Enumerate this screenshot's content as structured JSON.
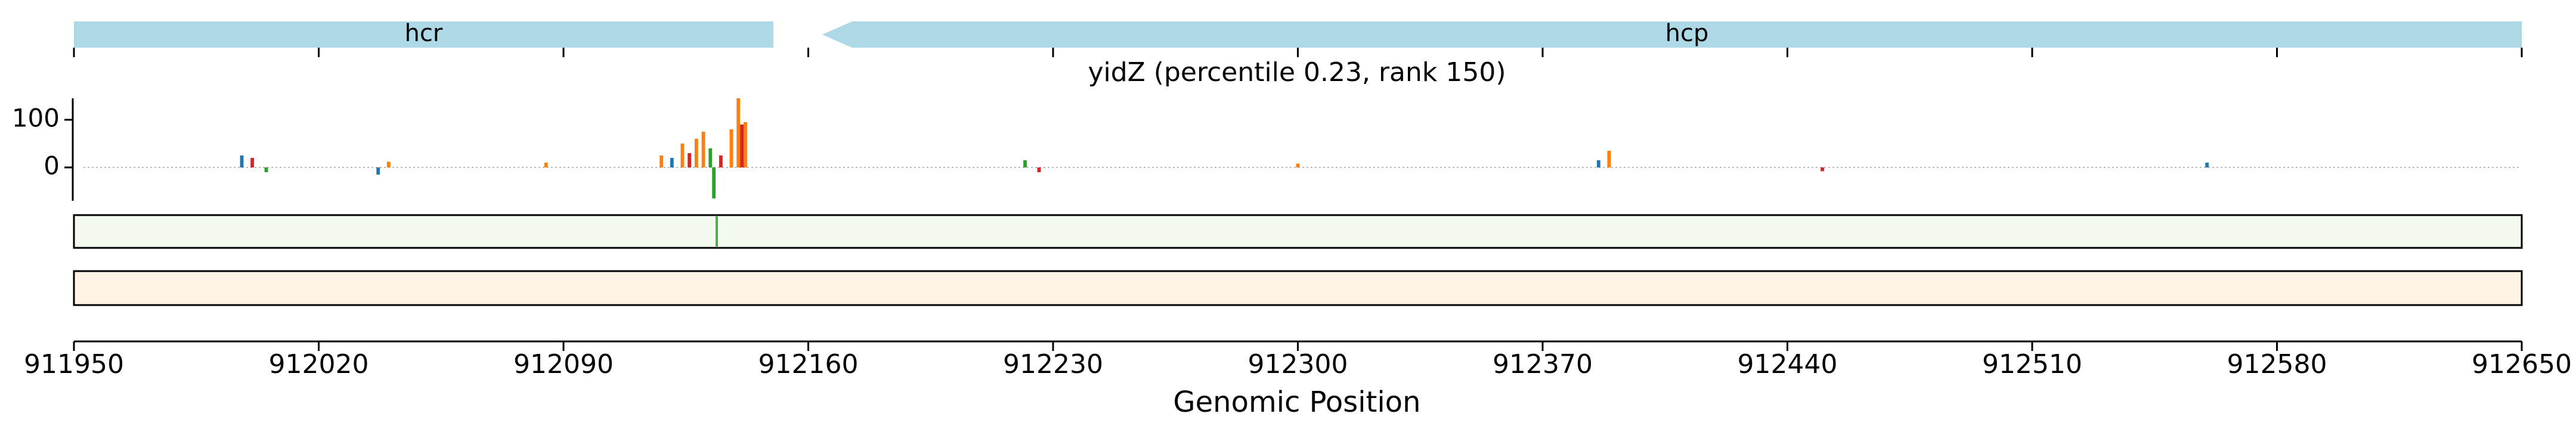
{
  "chart_data": {
    "type": "logo",
    "title": "yidZ (percentile 0.23, rank 150)",
    "x_label": "Genomic Position",
    "genes": [
      {
        "name": "hcr",
        "start": 911950,
        "end": 912150,
        "color": "#add8e6"
      },
      {
        "name": "hcp",
        "start": 912164,
        "end": 912650,
        "color": "#add8e6"
      }
    ],
    "xlim": [
      911950,
      912650
    ],
    "xticks": [
      911950,
      912020,
      912090,
      912160,
      912230,
      912300,
      912370,
      912440,
      912510,
      912580,
      912650
    ],
    "ylim": [
      -70,
      145
    ],
    "yticks": [
      0,
      100
    ],
    "x": [
      911998,
      912001,
      912005,
      912037,
      912040,
      912085,
      912118,
      912121,
      912124,
      912126,
      912128,
      912130,
      912132,
      912133,
      912135,
      912138,
      912140,
      912141,
      912142,
      912222,
      912226,
      912300,
      912386,
      912389,
      912450,
      912560
    ],
    "values": [
      25,
      20,
      -10,
      -15,
      12,
      10,
      25,
      20,
      50,
      30,
      60,
      75,
      40,
      -65,
      25,
      80,
      145,
      90,
      95,
      15,
      -10,
      8,
      15,
      35,
      -8,
      10
    ],
    "colors": [
      "#1f77b4",
      "#d62728",
      "#2ca02c",
      "#1f77b4",
      "#ff7f0e",
      "#ff7f0e",
      "#ff7f0e",
      "#1f77b4",
      "#ff7f0e",
      "#d62728",
      "#ff7f0e",
      "#ff7f0e",
      "#2ca02c",
      "#2ca02c",
      "#d62728",
      "#ff7f0e",
      "#ff7f0e",
      "#d62728",
      "#ff7f0e",
      "#2ca02c",
      "#d62728",
      "#ff7f0e",
      "#1f77b4",
      "#ff7f0e",
      "#d62728",
      "#1f77b4"
    ]
  }
}
